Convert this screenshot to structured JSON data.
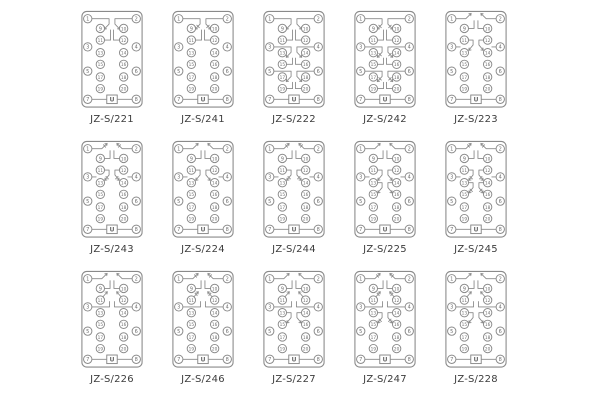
{
  "figure": {
    "background": "#ffffff",
    "line_color": "#8a8a8a",
    "text_color": "#6e6e6e",
    "label_color": "#3d3d3d",
    "coil_label": "U",
    "terminal_numbers": {
      "outer_left": [
        "1",
        "3",
        "5",
        "7"
      ],
      "outer_right": [
        "2",
        "4",
        "6",
        "8"
      ],
      "inner_left": [
        "9",
        "11",
        "13",
        "15",
        "17",
        "19"
      ],
      "inner_right": [
        "10",
        "12",
        "14",
        "16",
        "18",
        "20"
      ]
    },
    "cells": [
      {
        "label": "JZ-S/221",
        "contacts": [
          "g1"
        ],
        "nc": false
      },
      {
        "label": "JZ-S/241",
        "contacts": [
          "g1"
        ],
        "nc": true
      },
      {
        "label": "JZ-S/222",
        "contacts": [
          "g1",
          "g2",
          "g3"
        ],
        "nc": false
      },
      {
        "label": "JZ-S/242",
        "contacts": [
          "g1",
          "g2",
          "g3"
        ],
        "nc": true
      },
      {
        "label": "JZ-S/223",
        "contacts": [
          "gt",
          "g11d"
        ],
        "nc": false
      },
      {
        "label": "JZ-S/243",
        "contacts": [
          "gt",
          "g11d"
        ],
        "nc": true
      },
      {
        "label": "JZ-S/224",
        "contacts": [
          "gt",
          "g11d"
        ],
        "nc": false
      },
      {
        "label": "JZ-S/244",
        "contacts": [
          "gt",
          "g11d"
        ],
        "nc": true
      },
      {
        "label": "JZ-S/225",
        "contacts": [
          "gt",
          "g11d",
          "g13d"
        ],
        "nc": false
      },
      {
        "label": "JZ-S/245",
        "contacts": [
          "gt",
          "g11d",
          "g13d"
        ],
        "nc": true
      },
      {
        "label": "JZ-S/226",
        "contacts": [
          "gt",
          "g11u"
        ],
        "nc": false
      },
      {
        "label": "JZ-S/246",
        "contacts": [
          "gt",
          "g11u"
        ],
        "nc": true
      },
      {
        "label": "JZ-S/227",
        "contacts": [
          "gt",
          "g11u",
          "g13d"
        ],
        "nc": false
      },
      {
        "label": "JZ-S/247",
        "contacts": [
          "gt",
          "g11u",
          "g13d"
        ],
        "nc": true
      },
      {
        "label": "JZ-S/228",
        "contacts": [
          "gt",
          "g11u",
          "g13d"
        ],
        "nc": false
      }
    ]
  }
}
